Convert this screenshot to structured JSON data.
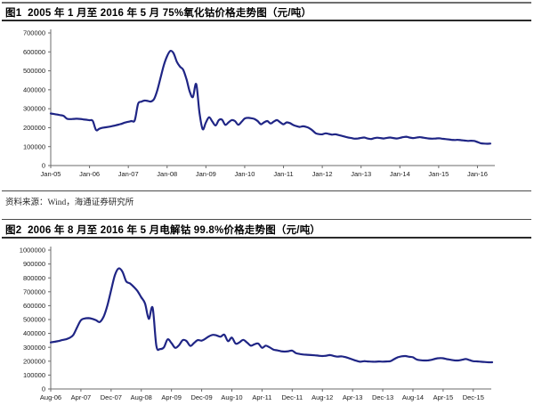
{
  "page": {
    "background": "#ffffff",
    "line_color": "#1f2585",
    "axis_color": "#6b6b6b"
  },
  "figure1": {
    "title": "图1  2005 年 1 月至 2016 年 5 月 75%氧化钴价格走势图（元/吨）"
  },
  "source_note": "资料来源：Wind，海通证券研究所",
  "figure2": {
    "title": "图2  2006 年 8 月至 2016 年 5 月电解钴 99.8%价格走势图（元/吨）"
  },
  "chart_data": [
    {
      "type": "line",
      "title": "2005年1月至2016年5月 75%氧化钴价格走势图（元/吨）",
      "series_name": "75%氧化钴价格",
      "unit": "元/吨",
      "x_start": "2005-01",
      "x_end": "2016-05",
      "x_tick_every": 12,
      "x_tick_labels": [
        "Jan-05",
        "Jan-06",
        "Jan-07",
        "Jan-08",
        "Jan-09",
        "Jan-10",
        "Jan-11",
        "Jan-12",
        "Jan-13",
        "Jan-14",
        "Jan-15",
        "Jan-16"
      ],
      "ylim": [
        0,
        700000
      ],
      "y_tick_step": 100000,
      "y_tick_labels": [
        "0",
        "100000",
        "200000",
        "300000",
        "400000",
        "500000",
        "600000",
        "700000"
      ],
      "grid": false,
      "legend": "none",
      "line_color": "#1f2585",
      "values": [
        275000,
        272000,
        269000,
        266000,
        262000,
        247000,
        245000,
        246000,
        247000,
        246000,
        244000,
        242000,
        239000,
        236000,
        188000,
        194000,
        199000,
        202000,
        205000,
        208000,
        212000,
        216000,
        221000,
        227000,
        231000,
        235000,
        239000,
        325000,
        337000,
        343000,
        341000,
        338000,
        352000,
        400000,
        465000,
        530000,
        578000,
        605000,
        593000,
        548000,
        522000,
        505000,
        455000,
        390000,
        362000,
        430000,
        280000,
        192000,
        228000,
        255000,
        232000,
        212000,
        240000,
        242000,
        215000,
        228000,
        240000,
        235000,
        215000,
        230000,
        248000,
        252000,
        250000,
        246000,
        235000,
        218000,
        228000,
        235000,
        222000,
        232000,
        240000,
        228000,
        218000,
        228000,
        224000,
        214000,
        208000,
        204000,
        207000,
        204000,
        197000,
        185000,
        170000,
        166000,
        165000,
        170000,
        167000,
        163000,
        165000,
        161000,
        157000,
        152000,
        148000,
        145000,
        142000,
        143000,
        146000,
        148000,
        143000,
        140000,
        144000,
        147000,
        145000,
        143000,
        146000,
        148000,
        145000,
        143000,
        146000,
        150000,
        152000,
        148000,
        145000,
        147000,
        150000,
        148000,
        145000,
        143000,
        142000,
        143000,
        144000,
        142000,
        140000,
        138000,
        136000,
        135000,
        136000,
        134000,
        132000,
        130000,
        131000,
        130000,
        124000,
        118000,
        116000,
        115000,
        116000
      ]
    },
    {
      "type": "line",
      "title": "2006年8月至2016年5月电解钴99.8%价格走势图（元/吨）",
      "series_name": "电解钴99.8%价格",
      "unit": "元/吨",
      "x_start": "2006-08",
      "x_end": "2016-05",
      "x_tick_every": 8,
      "x_tick_labels": [
        "Aug-06",
        "Apr-07",
        "Dec-07",
        "Aug-08",
        "Apr-09",
        "Dec-09",
        "Aug-10",
        "Apr-11",
        "Dec-11",
        "Aug-12",
        "Apr-13",
        "Dec-13",
        "Aug-14",
        "Apr-15",
        "Dec-15"
      ],
      "ylim": [
        0,
        1000000
      ],
      "y_tick_step": 100000,
      "y_tick_labels": [
        "0",
        "100000",
        "200000",
        "300000",
        "400000",
        "500000",
        "600000",
        "700000",
        "800000",
        "900000",
        "1000000"
      ],
      "grid": false,
      "legend": "none",
      "line_color": "#1f2585",
      "values": [
        335000,
        340000,
        345000,
        352000,
        358000,
        368000,
        390000,
        445000,
        495000,
        508000,
        510000,
        505000,
        495000,
        482000,
        520000,
        600000,
        710000,
        820000,
        868000,
        845000,
        775000,
        760000,
        735000,
        705000,
        660000,
        615000,
        505000,
        585000,
        310000,
        288000,
        300000,
        358000,
        330000,
        296000,
        315000,
        352000,
        345000,
        310000,
        332000,
        352000,
        348000,
        362000,
        380000,
        390000,
        385000,
        376000,
        391000,
        344000,
        370000,
        327000,
        335000,
        354000,
        335000,
        312000,
        322000,
        327000,
        297000,
        312000,
        300000,
        284000,
        278000,
        272000,
        269000,
        272000,
        276000,
        258000,
        252000,
        248000,
        246000,
        244000,
        242000,
        240000,
        237000,
        240000,
        244000,
        238000,
        233000,
        235000,
        230000,
        222000,
        212000,
        203000,
        196000,
        200000,
        198000,
        197000,
        196000,
        198000,
        197000,
        198000,
        200000,
        215000,
        228000,
        235000,
        237000,
        232000,
        228000,
        212000,
        207000,
        205000,
        206000,
        210000,
        218000,
        222000,
        221000,
        215000,
        210000,
        206000,
        205000,
        210000,
        216000,
        208000,
        200000,
        199000,
        196000,
        194000,
        192000,
        192000
      ]
    }
  ]
}
